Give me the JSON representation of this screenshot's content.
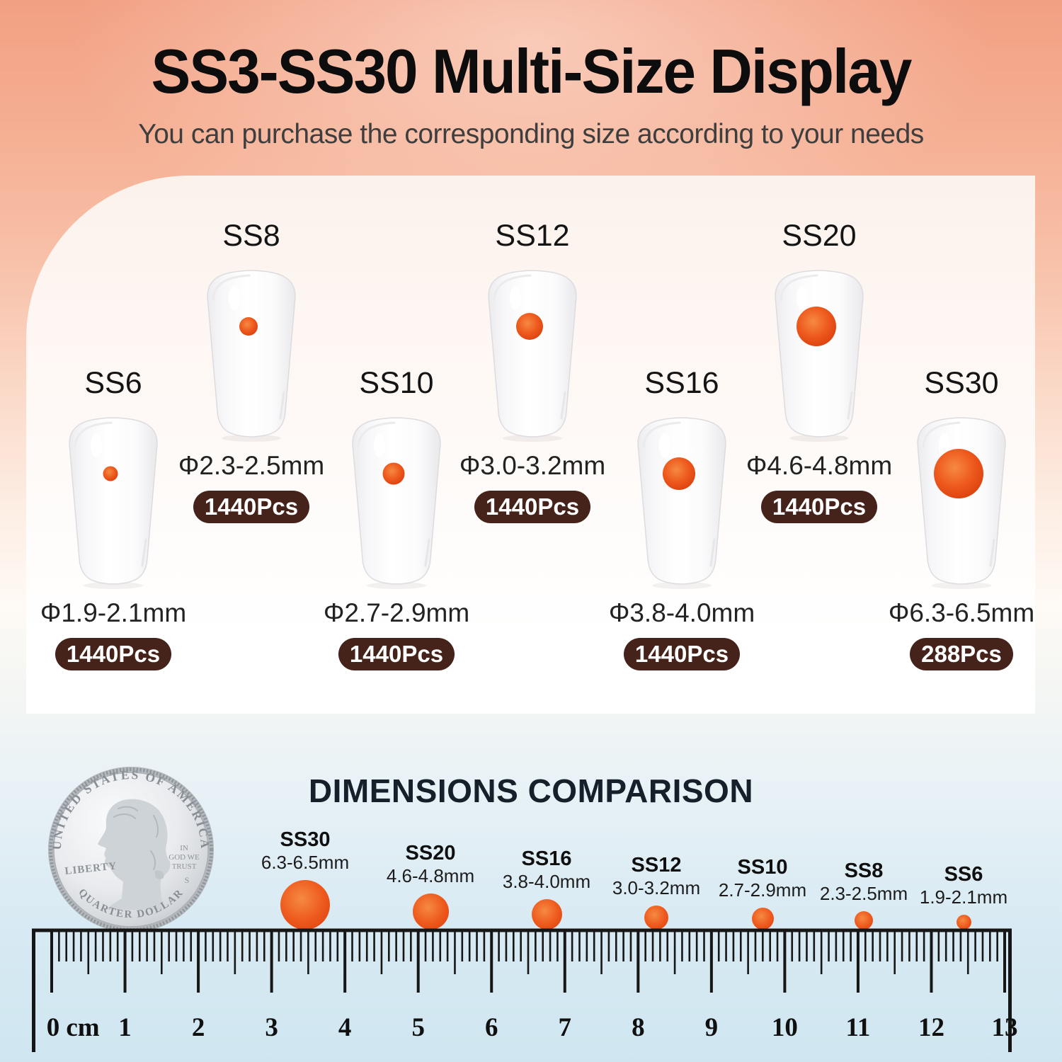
{
  "header": {
    "title": "SS3-SS30 Multi-Size Display",
    "subtitle": "You can purchase the corresponding size according to your needs"
  },
  "size_cards": [
    {
      "id": "ss6",
      "name": "SS6",
      "diameter": "Φ1.9-2.1mm",
      "pieces": "1440Pcs"
    },
    {
      "id": "ss8",
      "name": "SS8",
      "diameter": "Φ2.3-2.5mm",
      "pieces": "1440Pcs"
    },
    {
      "id": "ss10",
      "name": "SS10",
      "diameter": "Φ2.7-2.9mm",
      "pieces": "1440Pcs"
    },
    {
      "id": "ss12",
      "name": "SS12",
      "diameter": "Φ3.0-3.2mm",
      "pieces": "1440Pcs"
    },
    {
      "id": "ss16",
      "name": "SS16",
      "diameter": "Φ3.8-4.0mm",
      "pieces": "1440Pcs"
    },
    {
      "id": "ss20",
      "name": "SS20",
      "diameter": "Φ4.6-4.8mm",
      "pieces": "1440Pcs"
    },
    {
      "id": "ss30",
      "name": "SS30",
      "diameter": "Φ6.3-6.5mm",
      "pieces": "288Pcs"
    }
  ],
  "comparison": {
    "title": "DIMENSIONS COMPARISON",
    "coin": {
      "top_text": "UNITED STATES OF AMERICA",
      "bottom_text": "QUARTER DOLLAR",
      "left_text": "LIBERTY",
      "right_lines": [
        "IN",
        "GOD WE",
        "TRUST"
      ],
      "mint_mark": "S"
    },
    "dots": [
      {
        "id": "ss30",
        "name": "SS30",
        "range": "6.3-6.5mm"
      },
      {
        "id": "ss20",
        "name": "SS20",
        "range": "4.6-4.8mm"
      },
      {
        "id": "ss16",
        "name": "SS16",
        "range": "3.8-4.0mm"
      },
      {
        "id": "ss12",
        "name": "SS12",
        "range": "3.0-3.2mm"
      },
      {
        "id": "ss10",
        "name": "SS10",
        "range": "2.7-2.9mm"
      },
      {
        "id": "ss8",
        "name": "SS8",
        "range": "2.3-2.5mm"
      },
      {
        "id": "ss6",
        "name": "SS6",
        "range": "1.9-2.1mm"
      }
    ],
    "ruler": {
      "zero": "0",
      "unit": "cm",
      "numbers": [
        "1",
        "2",
        "3",
        "4",
        "5",
        "6",
        "7",
        "8",
        "9",
        "10",
        "11",
        "12",
        "13"
      ]
    }
  },
  "colors": {
    "stone_orange": "#ee5a1e",
    "badge_brown": "#45221a",
    "background_top": "#f2a083",
    "background_bottom": "#cfe6f0"
  }
}
